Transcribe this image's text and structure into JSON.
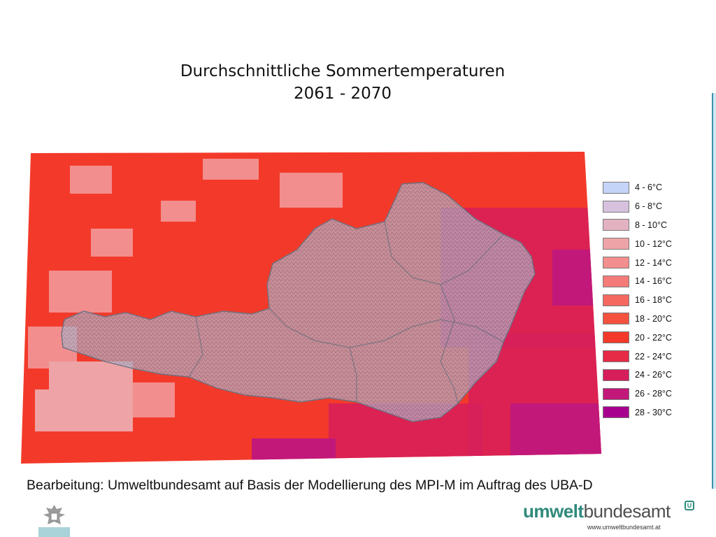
{
  "title": {
    "line1": "Durchschnittliche Sommertemperaturen",
    "line2": "2061 - 2070"
  },
  "legend": [
    {
      "label": "4 - 6°C",
      "color": "#c4d4f8"
    },
    {
      "label": "6 - 8°C",
      "color": "#d6c2de"
    },
    {
      "label": "8 - 10°C",
      "color": "#e2b2c0"
    },
    {
      "label": "10 - 12°C",
      "color": "#eea4a6"
    },
    {
      "label": "12 - 14°C",
      "color": "#f28e8e"
    },
    {
      "label": "14 - 16°C",
      "color": "#f47b78"
    },
    {
      "label": "16 - 18°C",
      "color": "#f46860"
    },
    {
      "label": "18 - 20°C",
      "color": "#f4523f"
    },
    {
      "label": "20 - 22°C",
      "color": "#f33a2a"
    },
    {
      "label": "22 - 24°C",
      "color": "#e52b46"
    },
    {
      "label": "24 - 26°C",
      "color": "#d61e5a"
    },
    {
      "label": "26 - 28°C",
      "color": "#c2187a"
    },
    {
      "label": "28 - 30°C",
      "color": "#a8008e"
    }
  ],
  "caption": "Bearbeitung: Umweltbundesamt auf Basis der Modellierung des MPI-M im Auftrag des UBA-D",
  "logo": {
    "part1": "umwelt",
    "part2": "bundesamt",
    "mark": "U",
    "url": "www.umweltbundesamt.at"
  },
  "map_colors": {
    "base": "#f33a2a",
    "cool": "#f28e8e",
    "coolest": "#eea4a6",
    "warm": "#d61e5a",
    "hot": "#c2187a",
    "austria_overlay": "#b0b0c0",
    "border": "#6f6f7f"
  },
  "icons": {
    "crest": "austrian-eagle-crest-icon"
  }
}
